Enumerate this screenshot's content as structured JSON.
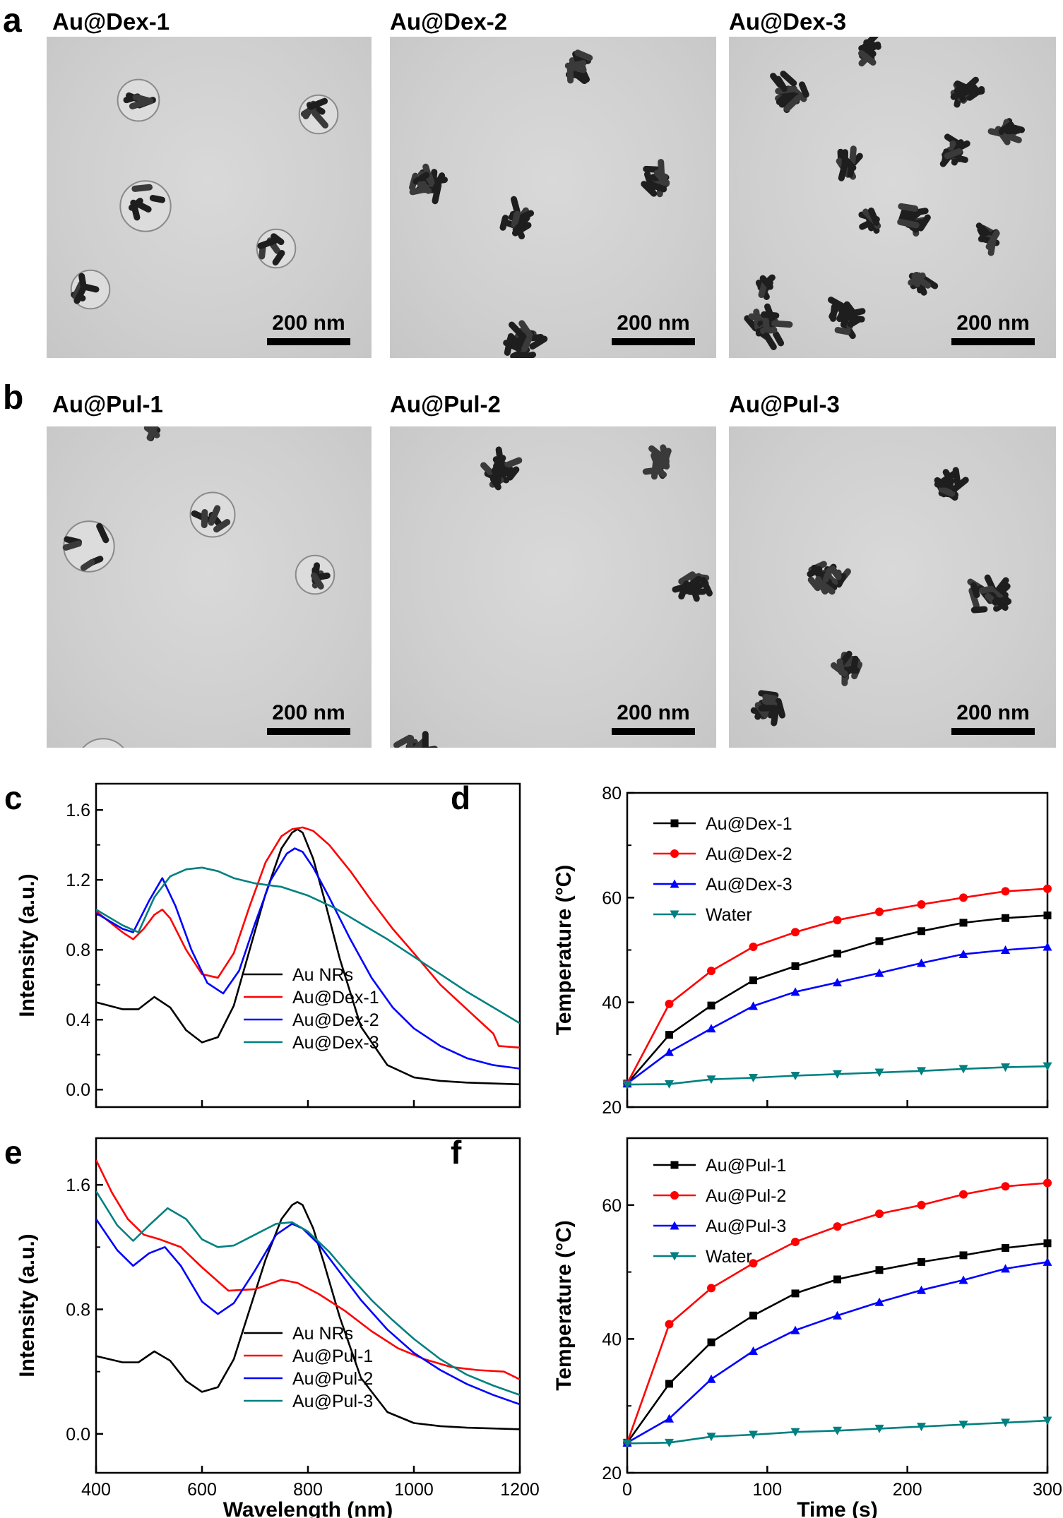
{
  "panels": {
    "a": {
      "letter": "a",
      "images": [
        {
          "label": "Au@Dex-1",
          "scale": "200 nm"
        },
        {
          "label": "Au@Dex-2",
          "scale": "200 nm"
        },
        {
          "label": "Au@Dex-3",
          "scale": "200 nm"
        }
      ]
    },
    "b": {
      "letter": "b",
      "images": [
        {
          "label": "Au@Pul-1",
          "scale": "200 nm"
        },
        {
          "label": "Au@Pul-2",
          "scale": "200 nm"
        },
        {
          "label": "Au@Pul-3",
          "scale": "200 nm"
        }
      ]
    }
  },
  "chart_data": [
    {
      "panel": "c",
      "type": "line",
      "xlabel": "",
      "ylabel": "Intensity (a.u.)",
      "xlim": [
        400,
        1200
      ],
      "ylim": [
        -0.1,
        1.75
      ],
      "xticks": [],
      "yticks": [
        0.0,
        0.4,
        0.8,
        1.2,
        1.6
      ],
      "ytick_labels": [
        "0.0",
        "0.4",
        "0.8",
        "1.2",
        "1.6"
      ],
      "legend_position": "lower-center",
      "series": [
        {
          "name": "Au NRs",
          "color": "#000000",
          "x": [
            400,
            450,
            480,
            510,
            540,
            570,
            600,
            630,
            660,
            690,
            720,
            750,
            770,
            780,
            790,
            810,
            830,
            860,
            900,
            950,
            1000,
            1050,
            1100,
            1150,
            1200
          ],
          "y": [
            0.5,
            0.46,
            0.46,
            0.53,
            0.47,
            0.34,
            0.27,
            0.3,
            0.48,
            0.8,
            1.12,
            1.38,
            1.47,
            1.49,
            1.47,
            1.32,
            1.1,
            0.75,
            0.36,
            0.14,
            0.07,
            0.05,
            0.04,
            0.035,
            0.03
          ]
        },
        {
          "name": "Au@Dex-1",
          "color": "#ff0000",
          "x": [
            400,
            450,
            470,
            490,
            510,
            525,
            540,
            570,
            600,
            630,
            660,
            690,
            720,
            750,
            770,
            790,
            810,
            840,
            880,
            920,
            960,
            1000,
            1050,
            1100,
            1150,
            1160,
            1200
          ],
          "y": [
            1.02,
            0.9,
            0.86,
            0.92,
            1.0,
            1.03,
            0.98,
            0.8,
            0.66,
            0.64,
            0.78,
            1.05,
            1.3,
            1.45,
            1.49,
            1.5,
            1.48,
            1.4,
            1.25,
            1.08,
            0.92,
            0.78,
            0.6,
            0.46,
            0.32,
            0.25,
            0.24
          ]
        },
        {
          "name": "Au@Dex-2",
          "color": "#0000ff",
          "x": [
            400,
            450,
            470,
            500,
            525,
            550,
            580,
            610,
            640,
            670,
            700,
            730,
            760,
            775,
            790,
            810,
            840,
            880,
            920,
            960,
            1000,
            1050,
            1100,
            1150,
            1200
          ],
          "y": [
            1.01,
            0.92,
            0.9,
            1.08,
            1.21,
            1.05,
            0.8,
            0.61,
            0.55,
            0.68,
            0.95,
            1.2,
            1.35,
            1.38,
            1.36,
            1.27,
            1.1,
            0.86,
            0.64,
            0.47,
            0.35,
            0.25,
            0.18,
            0.14,
            0.12
          ]
        },
        {
          "name": "Au@Dex-3",
          "color": "#008080",
          "x": [
            400,
            450,
            480,
            510,
            540,
            570,
            600,
            630,
            660,
            700,
            750,
            800,
            850,
            900,
            950,
            1000,
            1050,
            1100,
            1150,
            1200
          ],
          "y": [
            1.03,
            0.94,
            0.9,
            1.1,
            1.22,
            1.26,
            1.27,
            1.25,
            1.21,
            1.18,
            1.16,
            1.11,
            1.04,
            0.95,
            0.86,
            0.76,
            0.66,
            0.56,
            0.47,
            0.38
          ]
        }
      ]
    },
    {
      "panel": "d",
      "type": "line",
      "xlabel": "",
      "ylabel": "Temperature (°C)",
      "xlim": [
        0,
        300
      ],
      "ylim": [
        20,
        80
      ],
      "xticks": [],
      "yticks": [
        20,
        40,
        60,
        80
      ],
      "ytick_labels": [
        "20",
        "40",
        "60",
        "80"
      ],
      "legend_position": "top-left",
      "series": [
        {
          "name": "Au@Dex-1",
          "color": "#000000",
          "marker": "square",
          "x": [
            0,
            30,
            60,
            90,
            120,
            150,
            180,
            210,
            240,
            270,
            300
          ],
          "y": [
            24.5,
            33.8,
            39.4,
            44.2,
            46.9,
            49.3,
            51.7,
            53.6,
            55.2,
            56.1,
            56.6
          ]
        },
        {
          "name": "Au@Dex-2",
          "color": "#ff0000",
          "marker": "circle",
          "x": [
            0,
            30,
            60,
            90,
            120,
            150,
            180,
            210,
            240,
            270,
            300
          ],
          "y": [
            24.5,
            39.7,
            46.0,
            50.6,
            53.4,
            55.7,
            57.3,
            58.7,
            60.0,
            61.2,
            61.7
          ]
        },
        {
          "name": "Au@Dex-3",
          "color": "#0000ff",
          "marker": "triangle-up",
          "x": [
            0,
            30,
            60,
            90,
            120,
            150,
            180,
            210,
            240,
            270,
            300
          ],
          "y": [
            24.5,
            30.5,
            35.0,
            39.3,
            42.0,
            43.8,
            45.6,
            47.5,
            49.2,
            50.0,
            50.6
          ]
        },
        {
          "name": "Water",
          "color": "#008080",
          "marker": "triangle-down",
          "x": [
            0,
            30,
            60,
            90,
            120,
            150,
            180,
            210,
            240,
            270,
            300
          ],
          "y": [
            24.3,
            24.4,
            25.3,
            25.6,
            26.0,
            26.3,
            26.6,
            26.9,
            27.3,
            27.6,
            27.8
          ]
        }
      ]
    },
    {
      "panel": "e",
      "type": "line",
      "xlabel": "Wavelength (nm)",
      "ylabel": "Intensity (a.u.)",
      "xlim": [
        400,
        1200
      ],
      "ylim": [
        -0.25,
        1.9
      ],
      "xticks": [
        400,
        600,
        800,
        1000,
        1200
      ],
      "xtick_labels": [
        "400",
        "600",
        "800",
        "1000",
        "1200"
      ],
      "yticks": [
        0.0,
        0.8,
        1.6
      ],
      "ytick_labels": [
        "0.0",
        "0.8",
        "1.6"
      ],
      "legend_position": "lower-center",
      "series": [
        {
          "name": "Au NRs",
          "color": "#000000",
          "x": [
            400,
            450,
            480,
            510,
            540,
            570,
            600,
            630,
            660,
            690,
            720,
            750,
            770,
            780,
            790,
            810,
            830,
            860,
            900,
            950,
            1000,
            1050,
            1100,
            1150,
            1200
          ],
          "y": [
            0.5,
            0.46,
            0.46,
            0.53,
            0.47,
            0.34,
            0.27,
            0.3,
            0.48,
            0.8,
            1.12,
            1.38,
            1.47,
            1.49,
            1.47,
            1.32,
            1.1,
            0.75,
            0.36,
            0.14,
            0.07,
            0.05,
            0.04,
            0.035,
            0.03
          ]
        },
        {
          "name": "Au@Pul-1",
          "color": "#ff0000",
          "x": [
            400,
            430,
            460,
            490,
            520,
            560,
            600,
            650,
            700,
            750,
            780,
            820,
            870,
            920,
            970,
            1020,
            1070,
            1120,
            1170,
            1200
          ],
          "y": [
            1.76,
            1.55,
            1.38,
            1.28,
            1.25,
            1.2,
            1.07,
            0.92,
            0.93,
            0.99,
            0.97,
            0.9,
            0.79,
            0.66,
            0.55,
            0.48,
            0.43,
            0.41,
            0.4,
            0.35
          ]
        },
        {
          "name": "Au@Pul-2",
          "color": "#0000ff",
          "x": [
            400,
            440,
            470,
            500,
            530,
            560,
            600,
            630,
            660,
            700,
            740,
            770,
            790,
            820,
            860,
            900,
            950,
            1000,
            1050,
            1100,
            1150,
            1200
          ],
          "y": [
            1.38,
            1.18,
            1.08,
            1.16,
            1.2,
            1.08,
            0.85,
            0.77,
            0.84,
            1.05,
            1.28,
            1.35,
            1.32,
            1.22,
            1.04,
            0.86,
            0.67,
            0.52,
            0.41,
            0.32,
            0.25,
            0.19
          ]
        },
        {
          "name": "Au@Pul-3",
          "color": "#008080",
          "x": [
            400,
            440,
            470,
            500,
            535,
            570,
            600,
            630,
            660,
            700,
            740,
            770,
            800,
            840,
            880,
            920,
            960,
            1000,
            1050,
            1100,
            1150,
            1200
          ],
          "y": [
            1.56,
            1.34,
            1.24,
            1.34,
            1.45,
            1.38,
            1.25,
            1.2,
            1.21,
            1.28,
            1.35,
            1.36,
            1.3,
            1.17,
            1.01,
            0.86,
            0.73,
            0.61,
            0.48,
            0.38,
            0.31,
            0.25
          ]
        }
      ]
    },
    {
      "panel": "f",
      "type": "line",
      "xlabel": "Time (s)",
      "ylabel": "Temperature (°C)",
      "xlim": [
        0,
        300
      ],
      "ylim": [
        20,
        70
      ],
      "xticks": [
        0,
        100,
        200,
        300
      ],
      "xtick_labels": [
        "0",
        "100",
        "200",
        "300"
      ],
      "yticks": [
        20,
        40,
        60
      ],
      "ytick_labels": [
        "20",
        "40",
        "60"
      ],
      "legend_position": "top-left",
      "series": [
        {
          "name": "Au@Pul-1",
          "color": "#000000",
          "marker": "square",
          "x": [
            0,
            30,
            60,
            90,
            120,
            150,
            180,
            210,
            240,
            270,
            300
          ],
          "y": [
            24.5,
            33.3,
            39.5,
            43.5,
            46.8,
            48.9,
            50.3,
            51.5,
            52.5,
            53.6,
            54.3
          ]
        },
        {
          "name": "Au@Pul-2",
          "color": "#ff0000",
          "marker": "circle",
          "x": [
            0,
            30,
            60,
            90,
            120,
            150,
            180,
            210,
            240,
            270,
            300
          ],
          "y": [
            24.5,
            42.2,
            47.6,
            51.3,
            54.5,
            56.8,
            58.7,
            60.0,
            61.6,
            62.8,
            63.3
          ]
        },
        {
          "name": "Au@Pul-3",
          "color": "#0000ff",
          "marker": "triangle-up",
          "x": [
            0,
            30,
            60,
            90,
            120,
            150,
            180,
            210,
            240,
            270,
            300
          ],
          "y": [
            24.5,
            28.1,
            34.0,
            38.2,
            41.3,
            43.5,
            45.5,
            47.3,
            48.8,
            50.5,
            51.5
          ]
        },
        {
          "name": "Water",
          "color": "#008080",
          "marker": "triangle-down",
          "x": [
            0,
            30,
            60,
            90,
            120,
            150,
            180,
            210,
            240,
            270,
            300
          ],
          "y": [
            24.4,
            24.5,
            25.4,
            25.7,
            26.1,
            26.3,
            26.6,
            26.9,
            27.2,
            27.5,
            27.8
          ]
        }
      ]
    }
  ]
}
